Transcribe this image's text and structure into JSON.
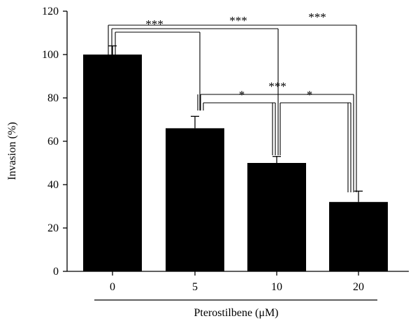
{
  "chart_data": {
    "type": "bar",
    "categories": [
      "0",
      "5",
      "10",
      "20"
    ],
    "values": [
      100,
      66,
      50,
      32
    ],
    "errors": [
      4,
      5.5,
      3,
      5
    ],
    "title": "",
    "xlabel": "Pterostilbene (μM)",
    "ylabel": "Invasion (%)",
    "ylim": [
      0,
      120
    ],
    "yticks": [
      "0",
      "20",
      "40",
      "60",
      "80",
      "100",
      "120"
    ],
    "grid": false,
    "legend": "none",
    "bar_color": "#000000",
    "significance": [
      {
        "from": "0",
        "to": "5",
        "label": "***"
      },
      {
        "from": "0",
        "to": "10",
        "label": "***"
      },
      {
        "from": "0",
        "to": "20",
        "label": "***"
      },
      {
        "from": "5",
        "to": "10",
        "label": "*"
      },
      {
        "from": "5",
        "to": "20",
        "label": "***"
      },
      {
        "from": "10",
        "to": "20",
        "label": "*"
      }
    ]
  }
}
